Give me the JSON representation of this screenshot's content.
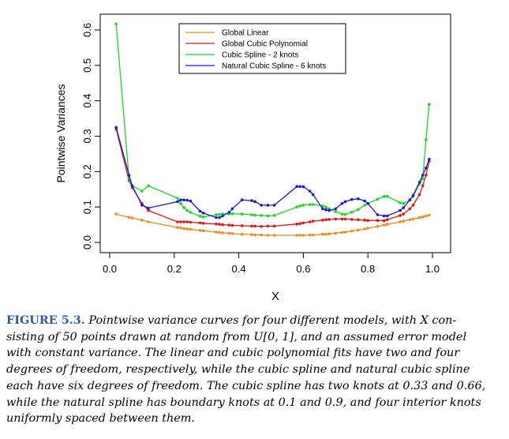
{
  "chart_data": {
    "type": "line",
    "xlabel": "X",
    "ylabel": "Pointwise Variances",
    "xlim": [
      0.0,
      1.0
    ],
    "ylim": [
      0.0,
      0.62
    ],
    "x_ticks": [
      "0.0",
      "0.2",
      "0.4",
      "0.6",
      "0.8",
      "1.0"
    ],
    "y_ticks": [
      "0.0",
      "0.1",
      "0.2",
      "0.3",
      "0.4",
      "0.5",
      "0.6"
    ],
    "grid": false,
    "legend_position": "top-center",
    "x": [
      0.02,
      0.06,
      0.07,
      0.1,
      0.12,
      0.21,
      0.22,
      0.23,
      0.24,
      0.25,
      0.28,
      0.29,
      0.33,
      0.34,
      0.35,
      0.37,
      0.38,
      0.41,
      0.44,
      0.45,
      0.47,
      0.49,
      0.51,
      0.58,
      0.59,
      0.6,
      0.62,
      0.63,
      0.66,
      0.67,
      0.68,
      0.7,
      0.72,
      0.73,
      0.75,
      0.77,
      0.79,
      0.8,
      0.83,
      0.85,
      0.86,
      0.9,
      0.91,
      0.93,
      0.94,
      0.96,
      0.97,
      0.98,
      0.99
    ],
    "series": [
      {
        "name": "Global Linear",
        "color": "#f08a1a",
        "values": [
          0.08,
          0.071,
          0.069,
          0.063,
          0.058,
          0.042,
          0.041,
          0.039,
          0.038,
          0.037,
          0.034,
          0.033,
          0.029,
          0.028,
          0.027,
          0.026,
          0.025,
          0.023,
          0.022,
          0.021,
          0.021,
          0.02,
          0.02,
          0.02,
          0.02,
          0.02,
          0.021,
          0.021,
          0.023,
          0.023,
          0.024,
          0.026,
          0.028,
          0.029,
          0.032,
          0.035,
          0.038,
          0.04,
          0.045,
          0.049,
          0.051,
          0.058,
          0.06,
          0.064,
          0.066,
          0.07,
          0.072,
          0.075,
          0.077
        ]
      },
      {
        "name": "Global Cubic Polynomial",
        "color": "#e01515",
        "values": [
          0.32,
          0.175,
          0.155,
          0.11,
          0.09,
          0.058,
          0.058,
          0.058,
          0.058,
          0.057,
          0.055,
          0.054,
          0.052,
          0.051,
          0.05,
          0.049,
          0.048,
          0.047,
          0.046,
          0.046,
          0.045,
          0.046,
          0.046,
          0.052,
          0.053,
          0.055,
          0.058,
          0.06,
          0.063,
          0.064,
          0.065,
          0.066,
          0.066,
          0.066,
          0.065,
          0.064,
          0.063,
          0.062,
          0.062,
          0.061,
          0.064,
          0.076,
          0.08,
          0.095,
          0.105,
          0.135,
          0.16,
          0.19,
          0.23
        ]
      },
      {
        "name": "Cubic Spline - 2 knots",
        "color": "#1ed61e",
        "values": [
          0.617,
          0.18,
          0.16,
          0.145,
          0.16,
          0.125,
          0.11,
          0.098,
          0.09,
          0.085,
          0.074,
          0.072,
          0.078,
          0.079,
          0.08,
          0.081,
          0.081,
          0.08,
          0.078,
          0.077,
          0.076,
          0.075,
          0.076,
          0.1,
          0.103,
          0.105,
          0.107,
          0.107,
          0.103,
          0.1,
          0.095,
          0.087,
          0.08,
          0.079,
          0.085,
          0.093,
          0.105,
          0.11,
          0.122,
          0.13,
          0.13,
          0.112,
          0.11,
          0.12,
          0.13,
          0.165,
          0.18,
          0.29,
          0.39
        ]
      },
      {
        "name": "Natural Cubic Spline - 6 knots",
        "color": "#1a1ad8",
        "values": [
          0.325,
          0.19,
          0.16,
          0.105,
          0.097,
          0.115,
          0.12,
          0.12,
          0.119,
          0.117,
          0.088,
          0.083,
          0.07,
          0.07,
          0.075,
          0.085,
          0.095,
          0.12,
          0.118,
          0.115,
          0.105,
          0.105,
          0.105,
          0.158,
          0.158,
          0.157,
          0.145,
          0.135,
          0.095,
          0.092,
          0.09,
          0.095,
          0.11,
          0.115,
          0.121,
          0.123,
          0.117,
          0.11,
          0.078,
          0.075,
          0.075,
          0.09,
          0.098,
          0.12,
          0.133,
          0.17,
          0.19,
          0.21,
          0.235
        ]
      }
    ]
  },
  "caption": {
    "label": "FIGURE 5.3.",
    "line1": "Pointwise variance curves for four different models, with X con-",
    "line2": "sisting of 50 points drawn at random from U[0, 1], and an assumed error model",
    "line3": "with constant variance. The linear and cubic polynomial fits have two and four",
    "line4": "degrees of freedom, respectively, while the cubic spline and natural cubic spline",
    "line5": "each have six degrees of freedom. The cubic spline has two knots at 0.33 and 0.66,",
    "line6": "while the natural spline has boundary knots at 0.1 and 0.9, and four interior knots",
    "line7": "uniformly spaced between them."
  }
}
